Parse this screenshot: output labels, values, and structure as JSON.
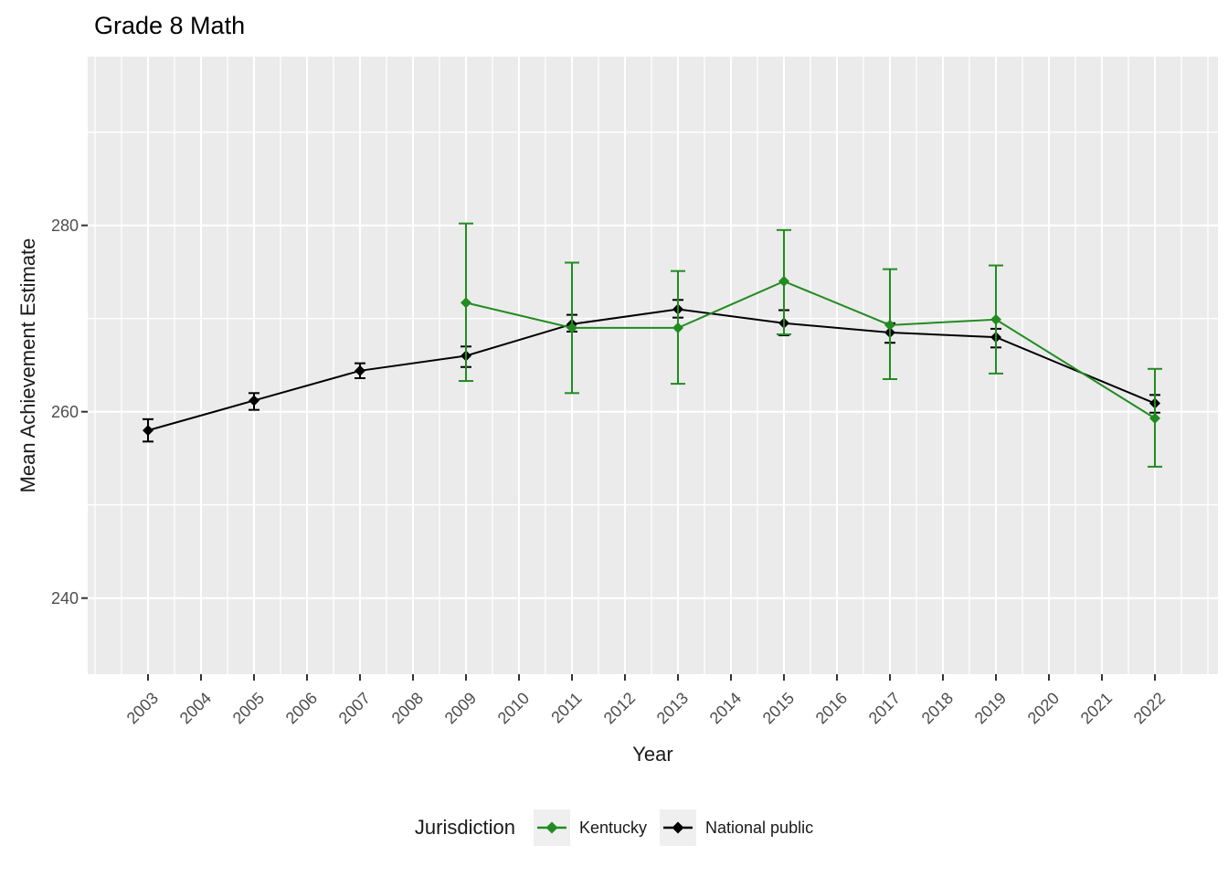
{
  "chart_data": {
    "type": "line",
    "title": "Grade 8 Math",
    "xlabel": "Year",
    "ylabel": "Mean Achievement Estimate",
    "legend_title": "Jurisdiction",
    "legend_position": "bottom",
    "grid": true,
    "error_bars": true,
    "x_ticks": [
      2003,
      2004,
      2005,
      2006,
      2007,
      2008,
      2009,
      2010,
      2011,
      2012,
      2013,
      2014,
      2015,
      2016,
      2017,
      2018,
      2019,
      2020,
      2021,
      2022
    ],
    "y_ticks": [
      240,
      260,
      280
    ],
    "xlim": [
      2001.9,
      2023.2
    ],
    "ylim": [
      231.8,
      298.1
    ],
    "panel_background": "#ebebeb",
    "gridline_color": "#ffffff",
    "tick_label_color": "#4d4d4d",
    "series": [
      {
        "name": "Kentucky",
        "color": "#228B22",
        "x": [
          2009,
          2011,
          2013,
          2015,
          2017,
          2019,
          2022
        ],
        "y": [
          271.7,
          269.0,
          269.0,
          274.0,
          269.3,
          269.9,
          259.3
        ],
        "ci_low": [
          263.3,
          262.0,
          263.0,
          268.3,
          263.5,
          264.1,
          254.1
        ],
        "ci_high": [
          280.2,
          276.0,
          275.1,
          279.5,
          275.3,
          275.7,
          264.6
        ]
      },
      {
        "name": "National public",
        "color": "#000000",
        "x": [
          2003,
          2005,
          2007,
          2009,
          2011,
          2013,
          2015,
          2017,
          2019,
          2022
        ],
        "y": [
          258.0,
          261.2,
          264.4,
          266.0,
          269.4,
          271.0,
          269.5,
          268.5,
          268.0,
          260.9
        ],
        "ci_low": [
          256.8,
          260.2,
          263.6,
          264.8,
          268.6,
          270.1,
          268.2,
          267.4,
          266.9,
          259.9
        ],
        "ci_high": [
          259.2,
          262.0,
          265.2,
          267.0,
          270.4,
          272.0,
          270.9,
          269.5,
          268.9,
          261.8
        ]
      }
    ]
  }
}
